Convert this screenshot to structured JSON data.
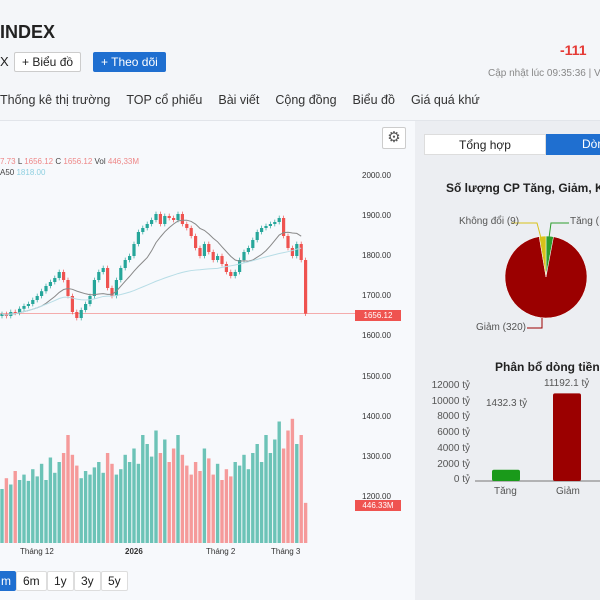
{
  "header": {
    "title": "INDEX",
    "ticker_tail": "X",
    "chart_button": "+ Biểu đồ",
    "follow_button": "+ Theo dõi",
    "change": "-111",
    "updated": "Cập nhật lúc  09:35:36 | V"
  },
  "nav": [
    "Thống kê thị trường",
    "TOP cổ phiếu",
    "Bài viết",
    "Cộng đồng",
    "Biểu đồ",
    "Giá quá khứ"
  ],
  "chart": {
    "ohlc_prefix": "7.73",
    "l_label": "L",
    "l_value": "1656.12",
    "c_label": "C",
    "c_value": "1656.12",
    "vol_label": "Vol",
    "vol_value": "446,33M",
    "ma_label": "A50",
    "ma_value": "1818.00",
    "price_tag": "1656.12",
    "volume_tag": "446.33M",
    "gear_icon": "gear-icon",
    "price_ticks": [
      "2000.00",
      "1900.00",
      "1800.00",
      "1700.00",
      "1600.00",
      "1500.00",
      "1400.00",
      "1300.00",
      "1200.00"
    ],
    "x_labels": [
      "Tháng 12",
      "2026",
      "Tháng 2",
      "Tháng 3"
    ],
    "ranges": [
      "m",
      "6m",
      "1y",
      "3y",
      "5y"
    ],
    "colors": {
      "up": "#26a69a",
      "down": "#ef5350",
      "ma_short": "#888888",
      "ma50": "#b7dde6"
    }
  },
  "right": {
    "tabs": [
      "Tổng hợp",
      "Dòn"
    ],
    "colors": {
      "tab_active": "#1f6fd0"
    }
  },
  "chart_data": [
    {
      "type": "candlestick",
      "price_axis": [
        1200,
        2000
      ],
      "close": [
        1655,
        1650,
        1660,
        1658,
        1668,
        1675,
        1680,
        1690,
        1700,
        1712,
        1725,
        1735,
        1745,
        1760,
        1740,
        1700,
        1660,
        1645,
        1665,
        1680,
        1700,
        1740,
        1760,
        1770,
        1720,
        1700,
        1740,
        1770,
        1790,
        1800,
        1830,
        1860,
        1870,
        1880,
        1890,
        1905,
        1880,
        1900,
        1895,
        1890,
        1905,
        1880,
        1870,
        1850,
        1820,
        1800,
        1830,
        1810,
        1790,
        1800,
        1780,
        1760,
        1750,
        1760,
        1790,
        1810,
        1820,
        1840,
        1860,
        1870,
        1875,
        1880,
        1885,
        1895,
        1850,
        1820,
        1800,
        1830,
        1790,
        1656
      ],
      "volume_m": [
        600,
        720,
        650,
        800,
        700,
        760,
        690,
        820,
        740,
        880,
        700,
        950,
        780,
        900,
        1000,
        1200,
        980,
        860,
        720,
        800,
        760,
        840,
        900,
        780,
        1000,
        880,
        760,
        820,
        980,
        900,
        1050,
        880,
        1200,
        1100,
        960,
        1250,
        1000,
        1150,
        900,
        1050,
        1200,
        980,
        860,
        760,
        900,
        800,
        1050,
        940,
        760,
        880,
        700,
        820,
        740,
        900,
        860,
        980,
        820,
        1000,
        1100,
        900,
        1200,
        1000,
        1150,
        1350,
        1050,
        1250,
        1380,
        1100,
        1200,
        446
      ]
    },
    {
      "type": "pie",
      "title": "Số lượng CP Tăng, Giảm, Kh",
      "labels": [
        "Tăng (",
        "Không đổi (9)",
        "Giảm (320)"
      ],
      "values": [
        10,
        9,
        320
      ],
      "colors": [
        "#2e9e2e",
        "#d8c21a",
        "#9b0000"
      ]
    },
    {
      "type": "bar",
      "title": "Phân bổ dòng tiền",
      "categories": [
        "Tăng",
        "Giảm"
      ],
      "values": [
        1432.3,
        11192.1
      ],
      "data_labels": [
        "1432.3 tỷ",
        "11192.1 tỷ"
      ],
      "y_ticks": [
        "12000 tỷ",
        "10000 tỷ",
        "8000 tỷ",
        "6000 tỷ",
        "4000 tỷ",
        "2000 tỷ",
        "0 tỷ"
      ],
      "ylim": [
        0,
        12000
      ],
      "colors": [
        "#1a9a1a",
        "#9b0000"
      ]
    }
  ]
}
